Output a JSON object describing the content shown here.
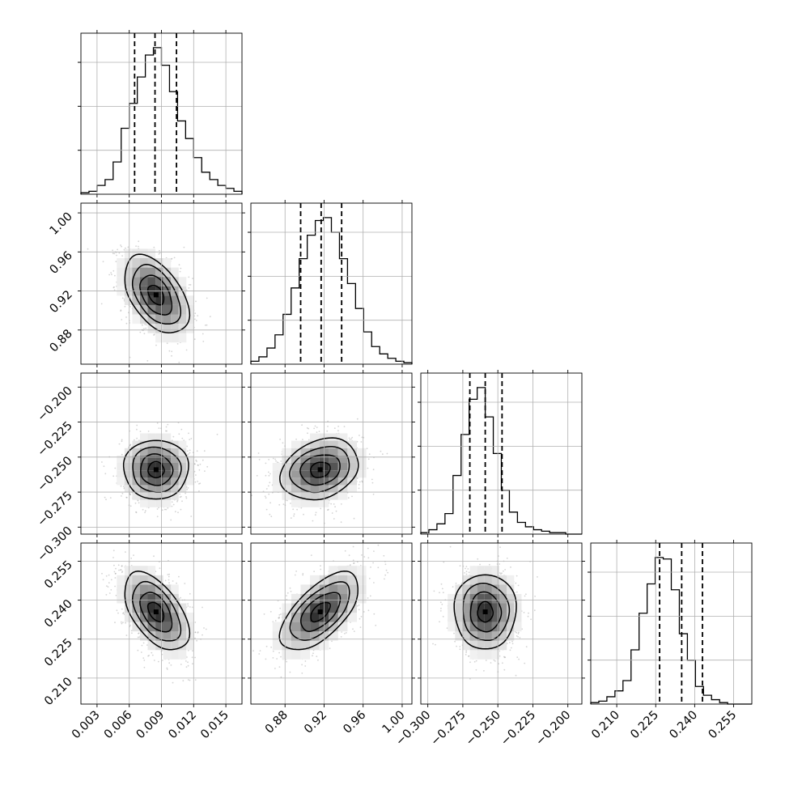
{
  "chart_data": {
    "type": "corner",
    "title": "",
    "parameters": [
      {
        "name": "",
        "lim": [
          0.0015,
          0.0165
        ],
        "ticks": [
          0.003,
          0.006,
          0.009,
          0.012,
          0.015
        ],
        "tick_labels": [
          "0.003",
          "0.006",
          "0.009",
          "0.012",
          "0.015"
        ],
        "quantiles": [
          0.0065,
          0.0084,
          0.0104
        ],
        "mean": 0.0085,
        "sd": 0.0015
      },
      {
        "name": "",
        "lim": [
          0.845,
          1.01
        ],
        "ticks": [
          0.88,
          0.92,
          0.96,
          1.0
        ],
        "tick_labels": [
          "0.88",
          "0.92",
          "0.96",
          "1.00"
        ],
        "quantiles": [
          0.896,
          0.917,
          0.938
        ],
        "mean": 0.916,
        "sd": 0.02
      },
      {
        "name": "",
        "lim": [
          -0.305,
          -0.19
        ],
        "ticks": [
          -0.3,
          -0.275,
          -0.25,
          -0.225,
          -0.2
        ],
        "tick_labels": [
          "−0.300",
          "−0.275",
          "−0.250",
          "−0.225",
          "−0.200"
        ],
        "quantiles": [
          -0.27,
          -0.259,
          -0.247
        ],
        "mean": -0.259,
        "sd": 0.011
      },
      {
        "name": "",
        "lim": [
          0.2,
          0.262
        ],
        "ticks": [
          0.21,
          0.225,
          0.24,
          0.255
        ],
        "tick_labels": [
          "0.210",
          "0.225",
          "0.240",
          "0.255"
        ],
        "quantiles": [
          0.2265,
          0.235,
          0.243
        ],
        "mean": 0.2355,
        "sd": 0.0075
      }
    ],
    "histograms": [
      {
        "param": 0,
        "counts": [
          0.01,
          0.02,
          0.06,
          0.1,
          0.22,
          0.45,
          0.62,
          0.8,
          0.95,
          1.0,
          0.88,
          0.7,
          0.5,
          0.38,
          0.25,
          0.15,
          0.1,
          0.06,
          0.04,
          0.02
        ]
      },
      {
        "param": 1,
        "counts": [
          0.02,
          0.05,
          0.11,
          0.2,
          0.34,
          0.52,
          0.72,
          0.88,
          0.98,
          1.0,
          0.9,
          0.72,
          0.55,
          0.38,
          0.22,
          0.12,
          0.07,
          0.04,
          0.02,
          0.01
        ]
      },
      {
        "param": 2,
        "counts": [
          0.01,
          0.03,
          0.07,
          0.14,
          0.4,
          0.68,
          0.92,
          1.0,
          0.8,
          0.55,
          0.3,
          0.15,
          0.08,
          0.05,
          0.03,
          0.02,
          0.01,
          0.01,
          0.0,
          0.0
        ]
      },
      {
        "param": 3,
        "counts": [
          0.01,
          0.02,
          0.05,
          0.09,
          0.16,
          0.37,
          0.62,
          0.82,
          1.0,
          0.99,
          0.78,
          0.48,
          0.3,
          0.12,
          0.06,
          0.03,
          0.01,
          0.0,
          0.0,
          0.0
        ]
      }
    ],
    "correlations": [
      {
        "row": 1,
        "col": 0,
        "rho": -0.45
      },
      {
        "row": 2,
        "col": 0,
        "rho": 0.0
      },
      {
        "row": 2,
        "col": 1,
        "rho": 0.2
      },
      {
        "row": 3,
        "col": 0,
        "rho": -0.5
      },
      {
        "row": 3,
        "col": 1,
        "rho": 0.6
      },
      {
        "row": 3,
        "col": 2,
        "rho": 0.0
      }
    ],
    "quantile_levels": [
      0.16,
      0.5,
      0.84
    ],
    "contour_levels_sigma": [
      0.5,
      1.0,
      1.5,
      2.0
    ],
    "grid": true,
    "colors": {
      "line": "#000000",
      "points": "#a0a0a0",
      "grid": "#b0b0b0"
    }
  }
}
